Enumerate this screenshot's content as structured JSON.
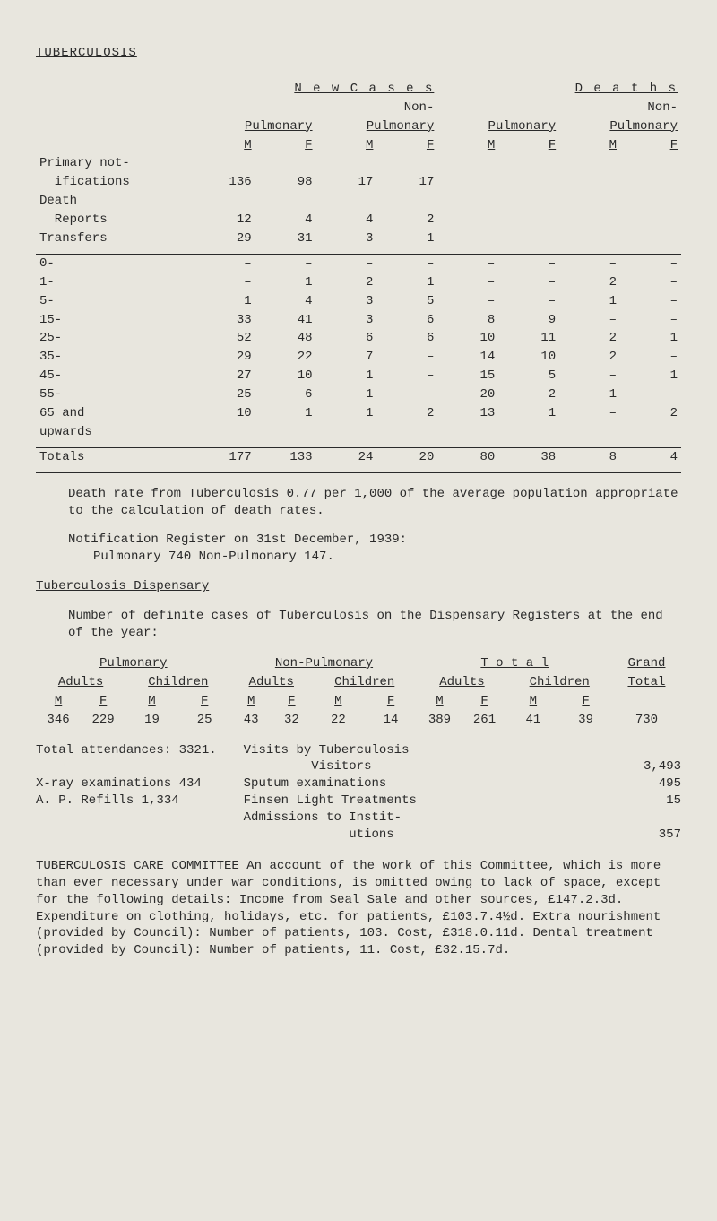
{
  "title": "TUBERCULOSIS",
  "table1": {
    "super_new": "N e w   C a s e s",
    "super_deaths": "D e a t h s",
    "sub_pulm": "Pulmonary",
    "sub_nonpulm_label": "Non-",
    "sub_nonpulm": "Pulmonary",
    "M": "M",
    "F": "F",
    "rows_a": [
      {
        "label": "Primary not-",
        "c": [
          "",
          "",
          "",
          "",
          "",
          "",
          "",
          ""
        ]
      },
      {
        "label": "  ifications",
        "c": [
          "136",
          "98",
          "17",
          "17",
          "",
          "",
          "",
          ""
        ]
      },
      {
        "label": "Death",
        "c": [
          "",
          "",
          "",
          "",
          "",
          "",
          "",
          ""
        ]
      },
      {
        "label": "  Reports",
        "c": [
          "12",
          "4",
          "4",
          "2",
          "",
          "",
          "",
          ""
        ]
      },
      {
        "label": "Transfers",
        "c": [
          "29",
          "31",
          "3",
          "1",
          "",
          "",
          "",
          ""
        ]
      }
    ],
    "rows_b": [
      {
        "label": "0-",
        "c": [
          "–",
          "–",
          "–",
          "–",
          "–",
          "–",
          "–",
          "–"
        ]
      },
      {
        "label": "1-",
        "c": [
          "–",
          "1",
          "2",
          "1",
          "–",
          "–",
          "2",
          "–"
        ]
      },
      {
        "label": "5-",
        "c": [
          "1",
          "4",
          "3",
          "5",
          "–",
          "–",
          "1",
          "–"
        ]
      },
      {
        "label": "15-",
        "c": [
          "33",
          "41",
          "3",
          "6",
          "8",
          "9",
          "–",
          "–"
        ]
      },
      {
        "label": "25-",
        "c": [
          "52",
          "48",
          "6",
          "6",
          "10",
          "11",
          "2",
          "1"
        ]
      },
      {
        "label": "35-",
        "c": [
          "29",
          "22",
          "7",
          "–",
          "14",
          "10",
          "2",
          "–"
        ]
      },
      {
        "label": "45-",
        "c": [
          "27",
          "10",
          "1",
          "–",
          "15",
          "5",
          "–",
          "1"
        ]
      },
      {
        "label": "55-",
        "c": [
          "25",
          "6",
          "1",
          "–",
          "20",
          "2",
          "1",
          "–"
        ]
      },
      {
        "label": "65 and",
        "c": [
          "10",
          "1",
          "1",
          "2",
          "13",
          "1",
          "–",
          "2"
        ]
      },
      {
        "label": "upwards",
        "c": [
          "",
          "",
          "",
          "",
          "",
          "",
          "",
          ""
        ]
      }
    ],
    "totals": {
      "label": "Totals",
      "c": [
        "177",
        "133",
        "24",
        "20",
        "80",
        "38",
        "8",
        "4"
      ]
    }
  },
  "para1": "Death rate from Tuberculosis 0.77 per 1,000 of the average population appropriate to the calculation of death rates.",
  "para2a": "Notification Register on 31st December, 1939:",
  "para2b": "Pulmonary  740    Non-Pulmonary  147.",
  "disp_heading": "Tuberculosis Dispensary",
  "para3": "Number of definite cases of Tuberculosis on the Dispensary Registers at the end of the year:",
  "reg": {
    "groups": [
      "Pulmonary",
      "Non-Pulmonary",
      "T o t a l",
      "Grand"
    ],
    "sub": [
      "Adults",
      "Children",
      "Adults",
      "Children",
      "Adults",
      "Children",
      "Total"
    ],
    "mf": [
      "M",
      "F",
      "M",
      "F",
      "M",
      "F",
      "M",
      "F",
      "M",
      "F",
      "M",
      "F",
      ""
    ],
    "vals": [
      "346",
      "229",
      "19",
      "25",
      "43",
      "32",
      "22",
      "14",
      "389",
      "261",
      "41",
      "39",
      "730"
    ]
  },
  "att": {
    "l1": "Total attendances:  3321.",
    "l2": "X-ray examinations   434",
    "l3": "A. P. Refills      1,334",
    "r": [
      {
        "t": "Visits by Tuberculosis",
        "v": ""
      },
      {
        "t": "         Visitors",
        "v": "3,493"
      },
      {
        "t": "Sputum examinations",
        "v": "495"
      },
      {
        "t": "Finsen Light Treatments",
        "v": "15"
      },
      {
        "t": "Admissions to Instit-",
        "v": ""
      },
      {
        "t": "              utions",
        "v": "357"
      }
    ]
  },
  "committee_head": "TUBERCULOSIS CARE COMMITTEE",
  "committee_body": "   An account of the work of this Committee, which is more than ever necessary under war con­ditions, is omitted owing to lack of space, except for the following details:  Income from Seal Sale and other sources, £147.2.3d.  Expenditure on clothing, holidays, etc. for patients, £103.7.4½d.   Extra nourishment (provided by Council): Number of patients, 103.   Cost, £318.0.11d.   Dental treatment (provided by Council):  Number of patients, 11.   Cost, £32.15.7d."
}
